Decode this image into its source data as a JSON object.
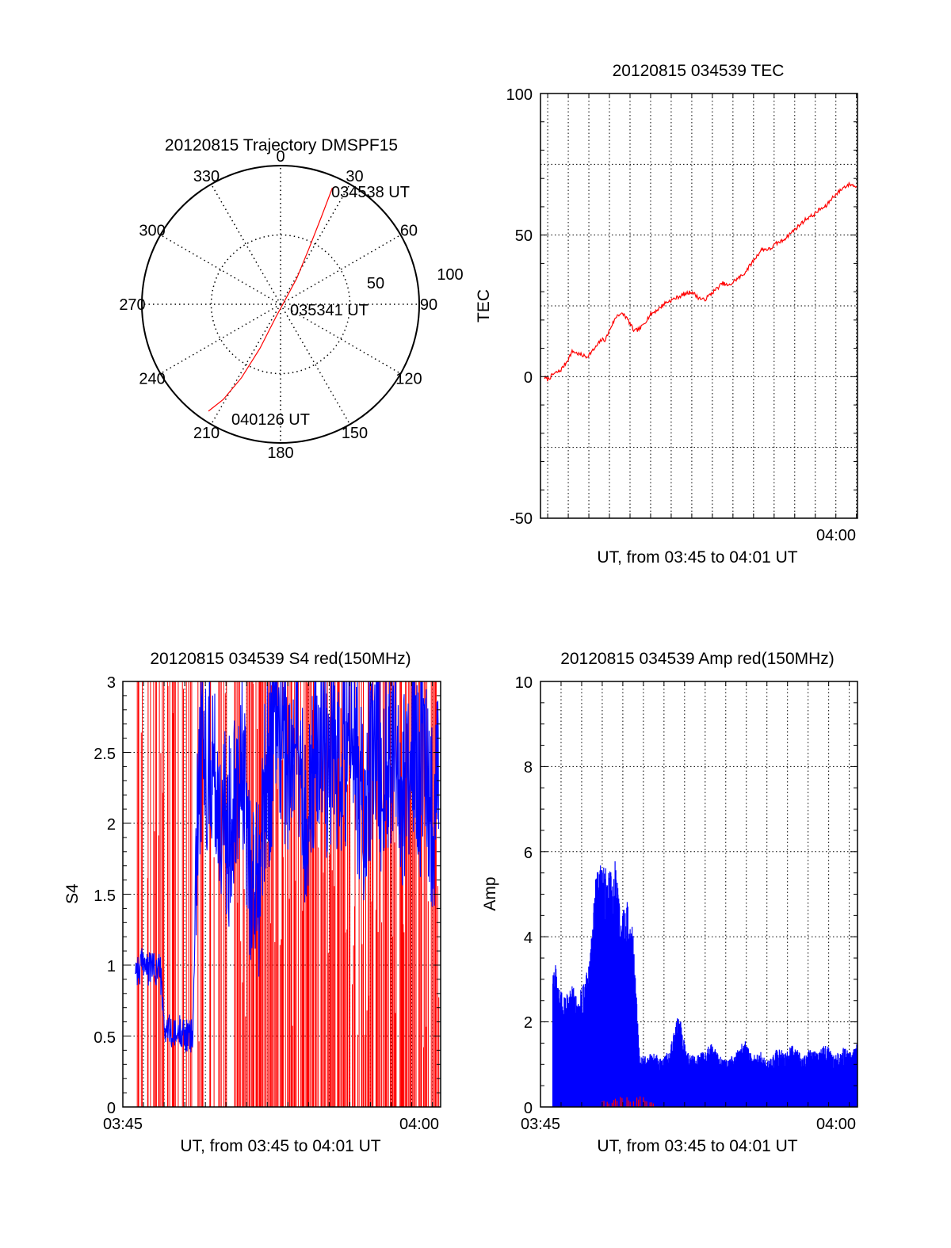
{
  "colors": {
    "tec": "#ff0000",
    "red": "#ff0000",
    "blue": "#0000ff",
    "axis": "#000000",
    "grid": "#000000",
    "background": "#ffffff"
  },
  "chart_data": [
    {
      "type": "polar",
      "title": "20120815 Trajectory DMSPF15",
      "grid": true,
      "azimuth_labels": [
        "0",
        "30",
        "60",
        "90",
        "120",
        "150",
        "180",
        "210",
        "240",
        "270",
        "300",
        "330"
      ],
      "elevation_ring_labels": [
        "50",
        "100"
      ],
      "annotations": [
        "034538 UT",
        "035341 UT",
        "040126 UT"
      ],
      "series": [
        {
          "points": [
            {
              "az": 24,
              "r": 92
            },
            {
              "az": 25,
              "r": 70
            },
            {
              "az": 27,
              "r": 45
            },
            {
              "az": 32,
              "r": 22
            },
            {
              "az": 45,
              "r": 5
            },
            {
              "az": 200,
              "r": 10
            },
            {
              "az": 205,
              "r": 35
            },
            {
              "az": 208,
              "r": 60
            },
            {
              "az": 211,
              "r": 80
            },
            {
              "az": 214,
              "r": 93
            }
          ]
        }
      ]
    },
    {
      "type": "line",
      "title": "20120815 034539 TEC",
      "xlabel": "UT, from 03:45 to 04:01 UT",
      "ylabel": "TEC",
      "xlim": [
        45.65,
        61.05
      ],
      "ylim": [
        -50,
        100
      ],
      "yticks": [
        "100",
        "50",
        "0",
        "-50"
      ],
      "xticks": [
        {
          "value": 60,
          "label": "04:00"
        }
      ],
      "grid": true,
      "x": [
        45.65,
        46.0,
        46.3,
        46.6,
        46.9,
        47.2,
        47.5,
        47.9,
        48.3,
        48.6,
        48.8,
        49.1,
        49.4,
        49.7,
        49.9,
        50.2,
        50.5,
        50.8,
        51.0,
        51.4,
        51.7,
        52.0,
        52.3,
        52.6,
        53.0,
        53.3,
        53.6,
        53.9,
        54.2,
        54.5,
        54.8,
        55.1,
        55.5,
        55.8,
        56.1,
        56.4,
        56.8,
        57.1,
        57.4,
        57.7,
        58.0,
        58.3,
        58.6,
        58.9,
        59.2,
        59.5,
        59.8,
        60.1,
        60.4,
        60.7,
        61.0
      ],
      "series": [
        {
          "values": [
            0.5,
            -1,
            1,
            2,
            5,
            9,
            8,
            7,
            10,
            13,
            13,
            18,
            22,
            22,
            20,
            16,
            17,
            20,
            22,
            24,
            26,
            27,
            28,
            29,
            30,
            28,
            27,
            29,
            31,
            33,
            32,
            34,
            36,
            39,
            42,
            45,
            45,
            47,
            48,
            50,
            52,
            54,
            56,
            57,
            59,
            60,
            63,
            65,
            67,
            68,
            67
          ]
        }
      ]
    },
    {
      "type": "line",
      "title": "20120815 034539 S4 red(150MHz)",
      "xlabel": "UT, from 03:45 to 04:01 UT",
      "ylabel": "S4",
      "xlim": [
        45,
        60.4
      ],
      "ylim": [
        0,
        3
      ],
      "yticks": [
        "3",
        "2.5",
        "2",
        "1.5",
        "1",
        "0.5",
        "0"
      ],
      "xticks": [
        {
          "value": 45,
          "label": "03:45"
        },
        {
          "value": 60,
          "label": "04:00"
        }
      ],
      "grid": true,
      "series": [
        {
          "color": "red",
          "description": "rapid spikes between 0 and 3 across the whole interval"
        },
        {
          "color": "blue",
          "x": [
            45.6,
            45.8,
            46.0,
            46.2,
            46.4,
            46.6,
            46.8,
            47.0,
            47.2,
            47.4,
            47.6,
            47.8,
            48.0,
            48.2,
            48.4,
            48.6,
            48.8,
            49.0,
            49.2,
            49.5,
            49.8,
            50.1,
            50.4,
            50.7,
            51.0,
            51.3,
            51.6,
            51.9,
            52.2,
            52.5,
            52.8,
            53.1,
            53.4,
            53.7,
            54.0,
            54.3,
            54.6,
            54.9,
            55.2,
            55.5,
            55.8,
            56.1,
            56.4,
            56.7,
            57.0,
            57.3,
            57.6,
            57.9,
            58.2,
            58.5,
            58.8,
            59.1,
            59.4,
            59.7,
            60.0,
            60.3
          ],
          "values": [
            1.0,
            0.95,
            1.05,
            0.95,
            1.0,
            0.95,
            1.0,
            0.55,
            0.55,
            0.5,
            0.5,
            0.55,
            0.5,
            0.5,
            0.5,
            2.2,
            2.5,
            2.4,
            2.6,
            2.3,
            2.0,
            1.9,
            2.3,
            2.5,
            2.0,
            1.5,
            1.6,
            2.2,
            2.5,
            2.8,
            2.6,
            2.3,
            2.7,
            2.2,
            2.0,
            2.5,
            2.8,
            2.4,
            2.6,
            2.2,
            2.5,
            2.8,
            2.3,
            2.0,
            2.4,
            2.6,
            2.2,
            2.5,
            2.7,
            2.1,
            2.4,
            2.6,
            2.3,
            2.5,
            2.0,
            2.4
          ]
        }
      ]
    },
    {
      "type": "line",
      "title": "20120815 034539 Amp red(150MHz)",
      "xlabel": "UT, from 03:45 to 04:01 UT",
      "ylabel": "Amp",
      "xlim": [
        45,
        60.4
      ],
      "ylim": [
        0,
        10
      ],
      "yticks": [
        "10",
        "8",
        "6",
        "4",
        "2",
        "0"
      ],
      "xticks": [
        {
          "value": 45,
          "label": "03:45"
        },
        {
          "value": 60,
          "label": "04:00"
        }
      ],
      "grid": true,
      "series": [
        {
          "color": "blue",
          "x": [
            45.6,
            45.9,
            46.2,
            46.5,
            46.8,
            47.1,
            47.4,
            47.7,
            48.0,
            48.3,
            48.6,
            48.9,
            49.2,
            49.5,
            49.8,
            50.1,
            50.5,
            50.9,
            51.3,
            51.7,
            52.1,
            52.5,
            52.9,
            53.3,
            53.7,
            54.1,
            54.5,
            54.9,
            55.3,
            55.7,
            56.1,
            56.5,
            56.9,
            57.3,
            57.7,
            58.1,
            58.5,
            58.9,
            59.3,
            59.7,
            60.1,
            60.4
          ],
          "values": [
            3.8,
            2.8,
            2.6,
            3.0,
            2.5,
            3.0,
            3.5,
            5.7,
            5.8,
            5.5,
            5.9,
            4.5,
            5.0,
            4.2,
            1.3,
            1.2,
            1.3,
            1.1,
            1.4,
            2.3,
            1.3,
            1.2,
            1.3,
            1.5,
            1.2,
            1.1,
            1.3,
            1.6,
            1.2,
            1.3,
            1.1,
            1.4,
            1.3,
            1.5,
            1.2,
            1.4,
            1.3,
            1.5,
            1.2,
            1.4,
            1.3,
            1.5
          ]
        },
        {
          "color": "red",
          "x": [
            48.0,
            48.5,
            49.0,
            49.5,
            50.0,
            50.5
          ],
          "values": [
            0.15,
            0.2,
            0.25,
            0.2,
            0.3,
            0.2
          ]
        }
      ]
    }
  ]
}
